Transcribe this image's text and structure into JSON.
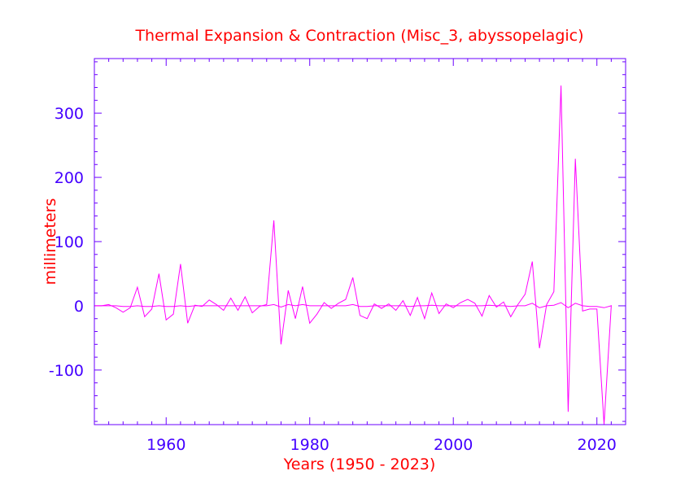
{
  "chart_data": {
    "type": "line",
    "title": "Thermal Expansion & Contraction (Misc_3, abyssopelagic)",
    "xlabel": "Years (1950 - 2023)",
    "ylabel": "millimeters",
    "xlim": [
      1950,
      2024
    ],
    "ylim": [
      -185,
      385
    ],
    "x_ticks": [
      {
        "value": 1960,
        "label": "1960"
      },
      {
        "value": 1980,
        "label": "1980"
      },
      {
        "value": 2000,
        "label": "2000"
      },
      {
        "value": 2020,
        "label": "2020"
      }
    ],
    "y_ticks": [
      {
        "value": -100,
        "label": "-100"
      },
      {
        "value": 0,
        "label": "0"
      },
      {
        "value": 100,
        "label": "100"
      },
      {
        "value": 200,
        "label": "200"
      },
      {
        "value": 300,
        "label": "300"
      }
    ],
    "grid": false,
    "colors": {
      "line": "#ff00ff",
      "axis": "#6a00ff",
      "tick_text": "#4400ff",
      "title": "#ff0000"
    },
    "series": [
      {
        "x": [
          1950,
          1951,
          1952,
          1953,
          1954,
          1955,
          1956,
          1957,
          1958,
          1959,
          1960,
          1961,
          1962,
          1963,
          1964,
          1965,
          1966,
          1967,
          1968,
          1969,
          1970,
          1971,
          1972,
          1973,
          1974,
          1975,
          1976,
          1977,
          1978,
          1979,
          1980,
          1981,
          1982,
          1983,
          1984,
          1985,
          1986,
          1987,
          1988,
          1989,
          1990,
          1991,
          1992,
          1993,
          1994,
          1995,
          1996,
          1997,
          1998,
          1999,
          2000,
          2001,
          2002,
          2003,
          2004,
          2005,
          2006,
          2007,
          2008,
          2009,
          2010,
          2011,
          2012,
          2013,
          2014,
          2015,
          2016,
          2017,
          2018,
          2019,
          2020,
          2021,
          2022
        ],
        "values": [
          0,
          0,
          2,
          -3,
          -10,
          -3,
          29,
          -17,
          -5,
          50,
          -22,
          -13,
          65,
          -27,
          1,
          -1,
          9,
          2,
          -7,
          12,
          -7,
          14,
          -11,
          -1,
          2,
          133,
          -60,
          24,
          -20,
          30,
          -27,
          -13,
          5,
          -4,
          4,
          10,
          44,
          -15,
          -20,
          3,
          -4,
          3,
          -7,
          8,
          -15,
          13,
          -20,
          20,
          -12,
          3,
          -3,
          5,
          10,
          4,
          -16,
          16,
          -2,
          6,
          -17,
          2,
          18,
          69,
          -66,
          2,
          22,
          343,
          -165,
          229,
          -8,
          -5,
          -5,
          -185,
          1
        ]
      },
      {
        "x": [
          1950,
          1951,
          1952,
          1953,
          1954,
          1955,
          1956,
          1957,
          1958,
          1959,
          1960,
          1961,
          1962,
          1963,
          1964,
          1965,
          1966,
          1967,
          1968,
          1969,
          1970,
          1971,
          1972,
          1973,
          1974,
          1975,
          1976,
          1977,
          1978,
          1979,
          1980,
          1981,
          1982,
          1983,
          1984,
          1985,
          1986,
          1987,
          1988,
          1989,
          1990,
          1991,
          1992,
          1993,
          1994,
          1995,
          1996,
          1997,
          1998,
          1999,
          2000,
          2001,
          2002,
          2003,
          2004,
          2005,
          2006,
          2007,
          2008,
          2009,
          2010,
          2011,
          2012,
          2013,
          2014,
          2015,
          2016,
          2017,
          2018,
          2019,
          2020,
          2021,
          2022
        ],
        "values": [
          0,
          0,
          0,
          0,
          -1,
          -1,
          0,
          -1,
          -1,
          0,
          -1,
          -1,
          0,
          -1,
          0,
          0,
          0,
          0,
          0,
          0,
          0,
          0,
          0,
          0,
          0,
          2,
          -2,
          2,
          0,
          2,
          0,
          0,
          0,
          0,
          0,
          0,
          2,
          -1,
          -1,
          0,
          0,
          0,
          0,
          0,
          -1,
          0,
          0,
          1,
          0,
          0,
          0,
          0,
          0,
          0,
          0,
          1,
          0,
          0,
          -1,
          0,
          0,
          4,
          -3,
          0,
          1,
          5,
          -3,
          4,
          0,
          -1,
          -1,
          -3,
          0
        ]
      }
    ]
  }
}
